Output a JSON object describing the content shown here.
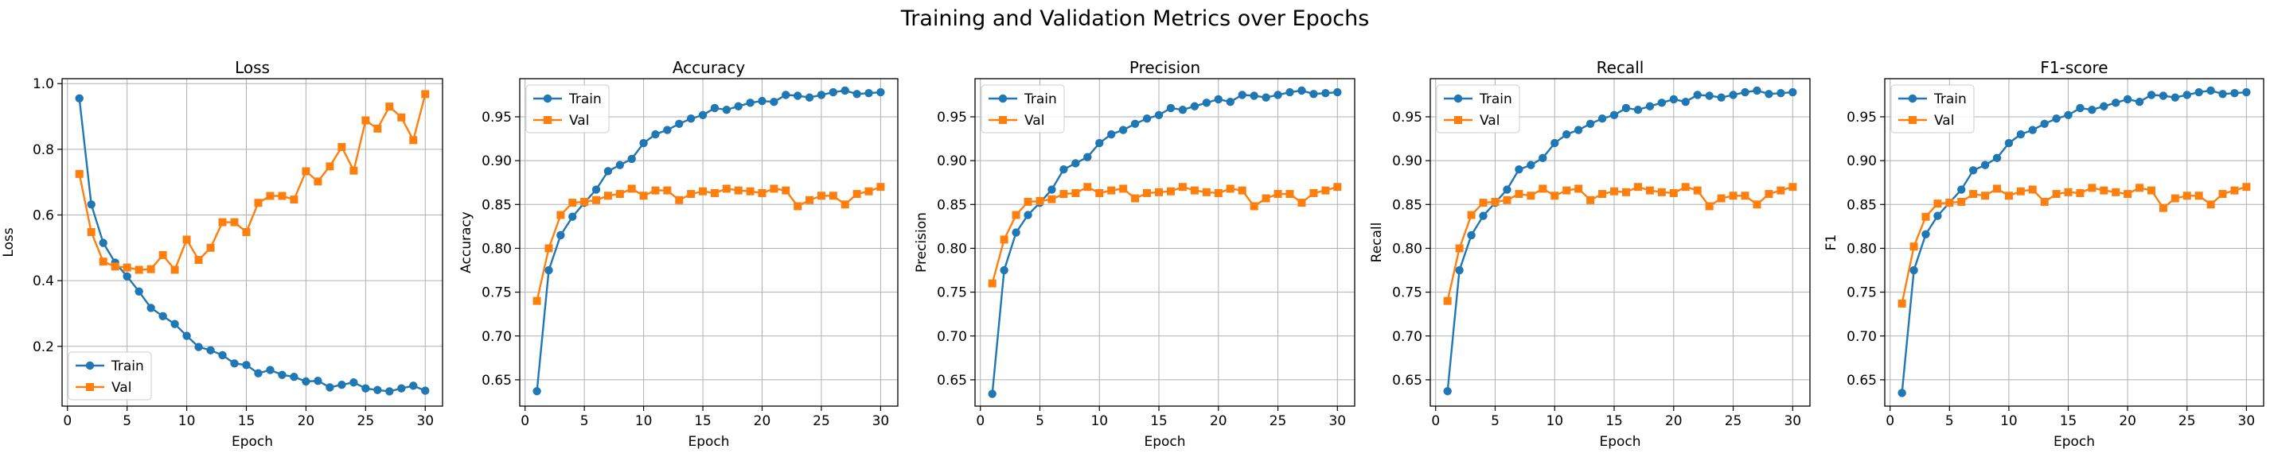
{
  "figure": {
    "title": "Training and Validation Metrics over Epochs"
  },
  "colors": {
    "train": "#1f77b4",
    "val": "#ff7f0e",
    "grid": "#b0b0b0",
    "axis": "#000000"
  },
  "chart_data": [
    {
      "type": "line",
      "title": "Loss",
      "xlabel": "Epoch",
      "ylabel": "Loss",
      "xlim": [
        -0.45,
        31.45
      ],
      "ylim": [
        0.018,
        1.015
      ],
      "xticks": [
        0,
        5,
        10,
        15,
        20,
        25,
        30
      ],
      "yticks": [
        0.2,
        0.4,
        0.6,
        0.8,
        1.0
      ],
      "ytick_labels": [
        "0.2",
        "0.4",
        "0.6",
        "0.8",
        "1.0"
      ],
      "grid": true,
      "legend": "lower left",
      "x": [
        1,
        2,
        3,
        4,
        5,
        6,
        7,
        8,
        9,
        10,
        11,
        12,
        13,
        14,
        15,
        16,
        17,
        18,
        19,
        20,
        21,
        22,
        23,
        24,
        25,
        26,
        27,
        28,
        29,
        30
      ],
      "series": [
        {
          "name": "Train",
          "marker": "circle",
          "values": [
            0.955,
            0.632,
            0.515,
            0.455,
            0.413,
            0.367,
            0.317,
            0.292,
            0.268,
            0.232,
            0.198,
            0.188,
            0.173,
            0.148,
            0.143,
            0.118,
            0.128,
            0.113,
            0.107,
            0.093,
            0.095,
            0.075,
            0.083,
            0.09,
            0.072,
            0.067,
            0.063,
            0.072,
            0.08,
            0.065
          ]
        },
        {
          "name": "Val",
          "marker": "square",
          "values": [
            0.725,
            0.548,
            0.458,
            0.443,
            0.44,
            0.433,
            0.435,
            0.478,
            0.433,
            0.525,
            0.463,
            0.5,
            0.578,
            0.578,
            0.548,
            0.637,
            0.658,
            0.658,
            0.647,
            0.733,
            0.702,
            0.748,
            0.807,
            0.735,
            0.888,
            0.863,
            0.93,
            0.897,
            0.828,
            0.968
          ]
        }
      ]
    },
    {
      "type": "line",
      "title": "Accuracy",
      "xlabel": "Epoch",
      "ylabel": "Accuracy",
      "xlim": [
        -0.45,
        31.45
      ],
      "ylim": [
        0.62,
        0.9935
      ],
      "xticks": [
        0,
        5,
        10,
        15,
        20,
        25,
        30
      ],
      "yticks": [
        0.65,
        0.7,
        0.75,
        0.8,
        0.85,
        0.9,
        0.95
      ],
      "ytick_labels": [
        "0.65",
        "0.70",
        "0.75",
        "0.80",
        "0.85",
        "0.90",
        "0.95"
      ],
      "grid": true,
      "legend": "upper left",
      "x": [
        1,
        2,
        3,
        4,
        5,
        6,
        7,
        8,
        9,
        10,
        11,
        12,
        13,
        14,
        15,
        16,
        17,
        18,
        19,
        20,
        21,
        22,
        23,
        24,
        25,
        26,
        27,
        28,
        29,
        30
      ],
      "series": [
        {
          "name": "Train",
          "marker": "circle",
          "values": [
            0.637,
            0.775,
            0.815,
            0.836,
            0.852,
            0.867,
            0.888,
            0.895,
            0.902,
            0.92,
            0.93,
            0.935,
            0.942,
            0.948,
            0.952,
            0.96,
            0.958,
            0.962,
            0.966,
            0.968,
            0.967,
            0.975,
            0.974,
            0.972,
            0.975,
            0.978,
            0.98,
            0.976,
            0.977,
            0.978
          ]
        },
        {
          "name": "Val",
          "marker": "square",
          "values": [
            0.74,
            0.8,
            0.838,
            0.852,
            0.853,
            0.855,
            0.86,
            0.862,
            0.868,
            0.86,
            0.866,
            0.866,
            0.855,
            0.862,
            0.865,
            0.863,
            0.868,
            0.866,
            0.865,
            0.863,
            0.868,
            0.866,
            0.848,
            0.855,
            0.86,
            0.86,
            0.85,
            0.862,
            0.865,
            0.87
          ]
        }
      ]
    },
    {
      "type": "line",
      "title": "Precision",
      "xlabel": "Epoch",
      "ylabel": "Precision",
      "xlim": [
        -0.45,
        31.45
      ],
      "ylim": [
        0.62,
        0.9935
      ],
      "xticks": [
        0,
        5,
        10,
        15,
        20,
        25,
        30
      ],
      "yticks": [
        0.65,
        0.7,
        0.75,
        0.8,
        0.85,
        0.9,
        0.95
      ],
      "ytick_labels": [
        "0.65",
        "0.70",
        "0.75",
        "0.80",
        "0.85",
        "0.90",
        "0.95"
      ],
      "grid": true,
      "legend": "upper left",
      "x": [
        1,
        2,
        3,
        4,
        5,
        6,
        7,
        8,
        9,
        10,
        11,
        12,
        13,
        14,
        15,
        16,
        17,
        18,
        19,
        20,
        21,
        22,
        23,
        24,
        25,
        26,
        27,
        28,
        29,
        30
      ],
      "series": [
        {
          "name": "Train",
          "marker": "circle",
          "values": [
            0.634,
            0.775,
            0.818,
            0.838,
            0.852,
            0.867,
            0.89,
            0.897,
            0.904,
            0.92,
            0.93,
            0.935,
            0.942,
            0.948,
            0.952,
            0.96,
            0.958,
            0.962,
            0.966,
            0.97,
            0.967,
            0.975,
            0.974,
            0.972,
            0.975,
            0.978,
            0.98,
            0.976,
            0.977,
            0.978
          ]
        },
        {
          "name": "Val",
          "marker": "square",
          "values": [
            0.76,
            0.81,
            0.838,
            0.853,
            0.854,
            0.856,
            0.862,
            0.863,
            0.87,
            0.863,
            0.866,
            0.868,
            0.857,
            0.863,
            0.864,
            0.865,
            0.87,
            0.866,
            0.864,
            0.863,
            0.868,
            0.866,
            0.848,
            0.857,
            0.862,
            0.862,
            0.852,
            0.863,
            0.866,
            0.87
          ]
        }
      ]
    },
    {
      "type": "line",
      "title": "Recall",
      "xlabel": "Epoch",
      "ylabel": "Recall",
      "xlim": [
        -0.45,
        31.45
      ],
      "ylim": [
        0.62,
        0.9935
      ],
      "xticks": [
        0,
        5,
        10,
        15,
        20,
        25,
        30
      ],
      "yticks": [
        0.65,
        0.7,
        0.75,
        0.8,
        0.85,
        0.9,
        0.95
      ],
      "ytick_labels": [
        "0.65",
        "0.70",
        "0.75",
        "0.80",
        "0.85",
        "0.90",
        "0.95"
      ],
      "grid": true,
      "legend": "upper left",
      "x": [
        1,
        2,
        3,
        4,
        5,
        6,
        7,
        8,
        9,
        10,
        11,
        12,
        13,
        14,
        15,
        16,
        17,
        18,
        19,
        20,
        21,
        22,
        23,
        24,
        25,
        26,
        27,
        28,
        29,
        30
      ],
      "series": [
        {
          "name": "Train",
          "marker": "circle",
          "values": [
            0.637,
            0.775,
            0.815,
            0.837,
            0.852,
            0.867,
            0.89,
            0.895,
            0.903,
            0.92,
            0.93,
            0.935,
            0.942,
            0.948,
            0.952,
            0.96,
            0.958,
            0.962,
            0.966,
            0.97,
            0.967,
            0.975,
            0.974,
            0.972,
            0.975,
            0.978,
            0.98,
            0.976,
            0.977,
            0.978
          ]
        },
        {
          "name": "Val",
          "marker": "square",
          "values": [
            0.74,
            0.8,
            0.838,
            0.852,
            0.853,
            0.855,
            0.862,
            0.86,
            0.868,
            0.86,
            0.866,
            0.868,
            0.855,
            0.862,
            0.865,
            0.864,
            0.87,
            0.866,
            0.864,
            0.863,
            0.87,
            0.866,
            0.848,
            0.857,
            0.86,
            0.86,
            0.85,
            0.862,
            0.866,
            0.87
          ]
        }
      ]
    },
    {
      "type": "line",
      "title": "F1-score",
      "xlabel": "Epoch",
      "ylabel": "F1",
      "xlim": [
        -0.45,
        31.45
      ],
      "ylim": [
        0.62,
        0.9935
      ],
      "xticks": [
        0,
        5,
        10,
        15,
        20,
        25,
        30
      ],
      "yticks": [
        0.65,
        0.7,
        0.75,
        0.8,
        0.85,
        0.9,
        0.95
      ],
      "ytick_labels": [
        "0.65",
        "0.70",
        "0.75",
        "0.80",
        "0.85",
        "0.90",
        "0.95"
      ],
      "grid": true,
      "legend": "upper left",
      "x": [
        1,
        2,
        3,
        4,
        5,
        6,
        7,
        8,
        9,
        10,
        11,
        12,
        13,
        14,
        15,
        16,
        17,
        18,
        19,
        20,
        21,
        22,
        23,
        24,
        25,
        26,
        27,
        28,
        29,
        30
      ],
      "series": [
        {
          "name": "Train",
          "marker": "circle",
          "values": [
            0.635,
            0.775,
            0.816,
            0.837,
            0.852,
            0.867,
            0.889,
            0.895,
            0.903,
            0.92,
            0.93,
            0.935,
            0.942,
            0.948,
            0.952,
            0.96,
            0.958,
            0.962,
            0.966,
            0.97,
            0.967,
            0.975,
            0.974,
            0.972,
            0.975,
            0.978,
            0.98,
            0.976,
            0.977,
            0.978
          ]
        },
        {
          "name": "Val",
          "marker": "square",
          "values": [
            0.737,
            0.802,
            0.836,
            0.851,
            0.852,
            0.853,
            0.862,
            0.86,
            0.868,
            0.86,
            0.865,
            0.867,
            0.853,
            0.862,
            0.864,
            0.863,
            0.869,
            0.866,
            0.864,
            0.862,
            0.869,
            0.866,
            0.846,
            0.857,
            0.86,
            0.86,
            0.85,
            0.862,
            0.866,
            0.87
          ]
        }
      ]
    }
  ]
}
